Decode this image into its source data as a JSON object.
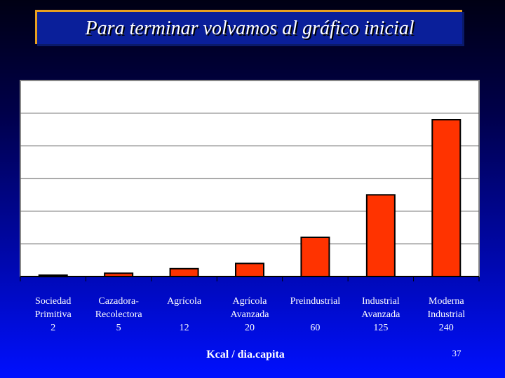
{
  "slide": {
    "title": "Para terminar volvamos al gráfico inicial",
    "page_number": "37"
  },
  "chart_data": {
    "type": "bar",
    "title": "",
    "xlabel": "Kcal / dia.capita",
    "ylabel": "",
    "categories": [
      [
        "Sociedad",
        "Primitiva"
      ],
      [
        "Cazadora-",
        "Recolectora"
      ],
      [
        "Agrícola",
        ""
      ],
      [
        "Agrícola",
        "Avanzada"
      ],
      [
        "Preindustrial",
        ""
      ],
      [
        "Industrial",
        "Avanzada"
      ],
      [
        "Moderna",
        "Industrial"
      ]
    ],
    "values": [
      2,
      5,
      12,
      20,
      60,
      125,
      240
    ],
    "value_labels": [
      "2",
      "5",
      "12",
      "20",
      "60",
      "125",
      "240"
    ],
    "ylim": [
      0,
      300
    ],
    "grid": true,
    "bar_color": "#ff3300",
    "plot_background": "#ffffff",
    "legend": "none"
  }
}
